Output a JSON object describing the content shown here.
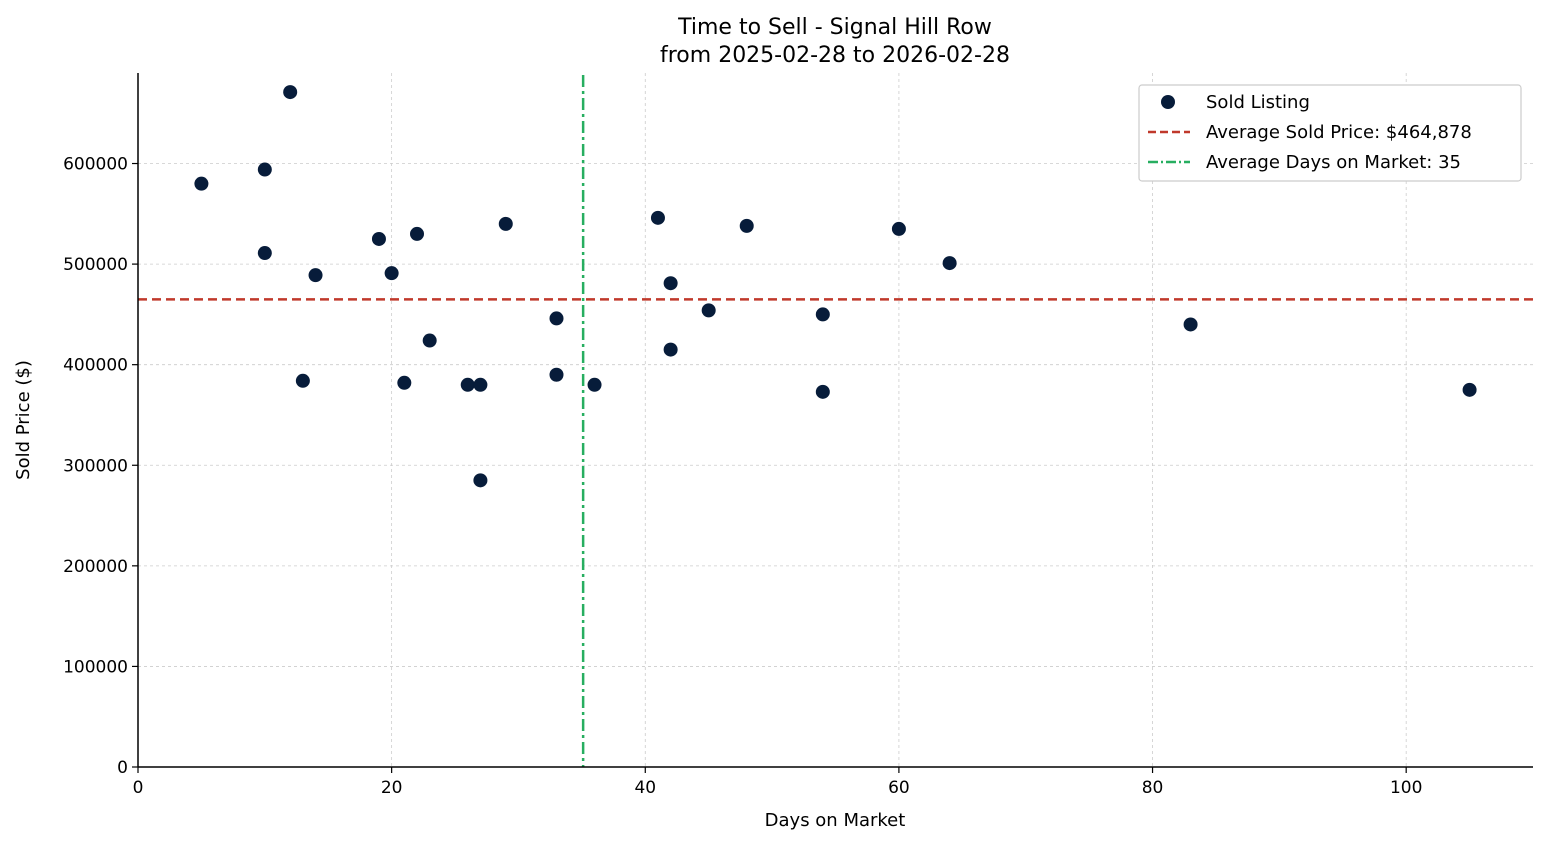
{
  "chart_data": {
    "type": "scatter",
    "title_line1": "Time to Sell - Signal Hill Row",
    "title_line2": "from 2025-02-28 to 2026-02-28",
    "xlabel": "Days on Market",
    "ylabel": "Sold Price ($)",
    "xlim": [
      0,
      110
    ],
    "ylim": [
      0,
      690000
    ],
    "x_ticks": [
      0,
      20,
      40,
      60,
      80,
      100
    ],
    "x_tick_labels": [
      "0",
      "20",
      "40",
      "60",
      "80",
      "100"
    ],
    "y_ticks": [
      0,
      100000,
      200000,
      300000,
      400000,
      500000,
      600000
    ],
    "y_tick_labels": [
      "0",
      "100000",
      "200000",
      "300000",
      "400000",
      "500000",
      "600000"
    ],
    "grid": true,
    "legend_position": "top-right",
    "series": [
      {
        "name": "Sold Listing",
        "color": "#071c3a",
        "points": [
          {
            "x": 5,
            "y": 580000
          },
          {
            "x": 10,
            "y": 594000
          },
          {
            "x": 10,
            "y": 511000
          },
          {
            "x": 12,
            "y": 671000
          },
          {
            "x": 13,
            "y": 384000
          },
          {
            "x": 14,
            "y": 489000
          },
          {
            "x": 19,
            "y": 525000
          },
          {
            "x": 20,
            "y": 491000
          },
          {
            "x": 21,
            "y": 382000
          },
          {
            "x": 22,
            "y": 530000
          },
          {
            "x": 23,
            "y": 424000
          },
          {
            "x": 26,
            "y": 380000
          },
          {
            "x": 27,
            "y": 380000
          },
          {
            "x": 27,
            "y": 285000
          },
          {
            "x": 29,
            "y": 540000
          },
          {
            "x": 33,
            "y": 446000
          },
          {
            "x": 33,
            "y": 390000
          },
          {
            "x": 36,
            "y": 380000
          },
          {
            "x": 41,
            "y": 546000
          },
          {
            "x": 42,
            "y": 481000
          },
          {
            "x": 42,
            "y": 415000
          },
          {
            "x": 45,
            "y": 454000
          },
          {
            "x": 48,
            "y": 538000
          },
          {
            "x": 54,
            "y": 450000
          },
          {
            "x": 54,
            "y": 373000
          },
          {
            "x": 60,
            "y": 535000
          },
          {
            "x": 64,
            "y": 501000
          },
          {
            "x": 83,
            "y": 440000
          },
          {
            "x": 105,
            "y": 375000
          }
        ]
      }
    ],
    "reference_lines": [
      {
        "name": "Average Sold Price: $464,878",
        "orientation": "horizontal",
        "value": 464878,
        "color": "#c0392b",
        "style": "dashed"
      },
      {
        "name": "Average Days on Market: 35",
        "orientation": "vertical",
        "value": 35.1,
        "color": "#27ae60",
        "style": "dashdot"
      }
    ],
    "legend": [
      "Sold Listing",
      "Average Sold Price: $464,878",
      "Average Days on Market: 35"
    ]
  }
}
